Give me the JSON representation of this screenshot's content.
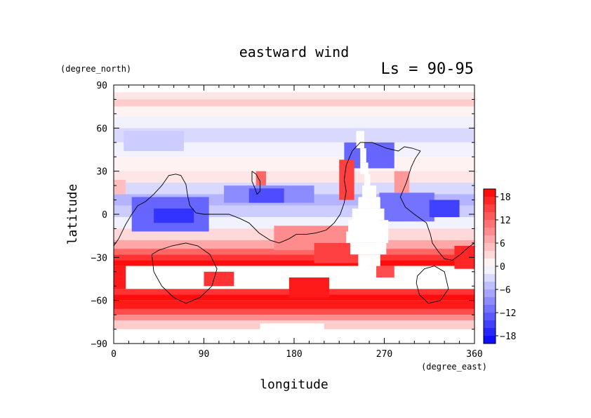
{
  "chart_data": {
    "type": "heatmap",
    "title": "eastward wind",
    "subtitle": "Ls = 90-95",
    "xlabel": "longitude",
    "ylabel": "latitude",
    "x_units": "(degree_east)",
    "y_units": "(degree_north)",
    "xlim": [
      0,
      360
    ],
    "ylim": [
      -90,
      90
    ],
    "x_ticks": [
      0,
      90,
      180,
      270,
      360
    ],
    "y_ticks": [
      90,
      60,
      30,
      0,
      -30,
      -60,
      -90
    ],
    "x_tick_labels": [
      "0",
      "90",
      "180",
      "270",
      "360"
    ],
    "y_tick_labels": [
      "90",
      "60",
      "30",
      "0",
      "−30",
      "−60",
      "−90"
    ],
    "colorbar": {
      "tick_values": [
        18,
        12,
        6,
        0,
        -6,
        -12,
        -18
      ],
      "tick_labels": [
        "18",
        "12",
        "6",
        "0",
        "−6",
        "−12",
        "−18"
      ],
      "range": [
        -20,
        20
      ],
      "negative_color": "#0000ff",
      "positive_color": "#ff0000",
      "zero_color": "#ffffff"
    },
    "coverage": {
      "lat_top": 85,
      "lat_bottom": -80
    },
    "zonal_bands": [
      {
        "lat_top": 85,
        "lat_bottom": 80,
        "value": 2
      },
      {
        "lat_top": 80,
        "lat_bottom": 75,
        "value": 4
      },
      {
        "lat_top": 75,
        "lat_bottom": 68,
        "value": 1
      },
      {
        "lat_top": 68,
        "lat_bottom": 60,
        "value": -1
      },
      {
        "lat_top": 60,
        "lat_bottom": 50,
        "value": -3
      },
      {
        "lat_top": 50,
        "lat_bottom": 40,
        "value": -1
      },
      {
        "lat_top": 40,
        "lat_bottom": 30,
        "value": 1
      },
      {
        "lat_top": 30,
        "lat_bottom": 22,
        "value": 2
      },
      {
        "lat_top": 22,
        "lat_bottom": 14,
        "value": -3
      },
      {
        "lat_top": 14,
        "lat_bottom": 6,
        "value": -6
      },
      {
        "lat_top": 6,
        "lat_bottom": -2,
        "value": -4
      },
      {
        "lat_top": -2,
        "lat_bottom": -10,
        "value": -1
      },
      {
        "lat_top": -10,
        "lat_bottom": -18,
        "value": 3
      },
      {
        "lat_top": -18,
        "lat_bottom": -24,
        "value": 7
      },
      {
        "lat_top": -24,
        "lat_bottom": -28,
        "value": 12
      },
      {
        "lat_top": -28,
        "lat_bottom": -32,
        "value": 16
      },
      {
        "lat_top": -32,
        "lat_bottom": -36,
        "value": 19
      },
      {
        "lat_top": -36,
        "lat_bottom": -52,
        "value": 0
      },
      {
        "lat_top": -52,
        "lat_bottom": -56,
        "value": 16
      },
      {
        "lat_top": -56,
        "lat_bottom": -60,
        "value": 19
      },
      {
        "lat_top": -60,
        "lat_bottom": -66,
        "value": 18
      },
      {
        "lat_top": -66,
        "lat_bottom": -70,
        "value": 14
      },
      {
        "lat_top": -70,
        "lat_bottom": -74,
        "value": 9
      },
      {
        "lat_top": -74,
        "lat_bottom": -80,
        "value": 4
      }
    ],
    "anomalies": [
      {
        "lon": [
          18,
          95
        ],
        "lat": [
          -12,
          12
        ],
        "value": -12
      },
      {
        "lon": [
          40,
          80
        ],
        "lat": [
          -6,
          4
        ],
        "value": -16
      },
      {
        "lon": [
          110,
          200
        ],
        "lat": [
          8,
          20
        ],
        "value": -9
      },
      {
        "lon": [
          135,
          170
        ],
        "lat": [
          8,
          18
        ],
        "value": -14
      },
      {
        "lon": [
          230,
          280
        ],
        "lat": [
          32,
          50
        ],
        "value": -12
      },
      {
        "lon": [
          265,
          320
        ],
        "lat": [
          -5,
          15
        ],
        "value": -11
      },
      {
        "lon": [
          315,
          345
        ],
        "lat": [
          -2,
          10
        ],
        "value": -15
      },
      {
        "lon": [
          225,
          240
        ],
        "lat": [
          10,
          38
        ],
        "value": 15
      },
      {
        "lon": [
          142,
          152
        ],
        "lat": [
          20,
          30
        ],
        "value": 12
      },
      {
        "lon": [
          280,
          295
        ],
        "lat": [
          15,
          30
        ],
        "value": 8
      },
      {
        "lon": [
          160,
          260
        ],
        "lat": [
          -25,
          -8
        ],
        "value": 9
      },
      {
        "lon": [
          200,
          260
        ],
        "lat": [
          -34,
          -20
        ],
        "value": 15
      },
      {
        "lon": [
          340,
          360
        ],
        "lat": [
          -38,
          -22
        ],
        "value": 17
      },
      {
        "lon": [
          0,
          12
        ],
        "lat": [
          14,
          24
        ],
        "value": 5
      },
      {
        "lon": [
          10,
          70
        ],
        "lat": [
          44,
          58
        ],
        "value": -4
      }
    ],
    "gap_fills": [
      {
        "lon": [
          0,
          12
        ],
        "lat": [
          -52,
          -36
        ],
        "value": 18
      },
      {
        "lon": [
          90,
          120
        ],
        "lat": [
          -50,
          -40
        ],
        "value": 16
      },
      {
        "lon": [
          175,
          215
        ],
        "lat": [
          -58,
          -44
        ],
        "value": 18
      },
      {
        "lon": [
          255,
          280
        ],
        "lat": [
          -44,
          -36
        ],
        "value": 14
      }
    ],
    "blank_regions": [
      {
        "lon": [
          242,
          250
        ],
        "lat": [
          58,
          46
        ]
      },
      {
        "lon": [
          246,
          252
        ],
        "lat": [
          46,
          36
        ]
      },
      {
        "lon": [
          246,
          254
        ],
        "lat": [
          36,
          28
        ]
      },
      {
        "lon": [
          250,
          256
        ],
        "lat": [
          28,
          20
        ]
      },
      {
        "lon": [
          248,
          262
        ],
        "lat": [
          20,
          12
        ]
      },
      {
        "lon": [
          244,
          266
        ],
        "lat": [
          12,
          4
        ]
      },
      {
        "lon": [
          238,
          270
        ],
        "lat": [
          4,
          -4
        ]
      },
      {
        "lon": [
          234,
          274
        ],
        "lat": [
          -4,
          -12
        ]
      },
      {
        "lon": [
          232,
          274
        ],
        "lat": [
          -12,
          -20
        ]
      },
      {
        "lon": [
          236,
          272
        ],
        "lat": [
          -20,
          -28
        ]
      },
      {
        "lon": [
          244,
          266
        ],
        "lat": [
          -28,
          -36
        ]
      },
      {
        "lon": [
          250,
          262
        ],
        "lat": [
          -36,
          -46
        ]
      },
      {
        "lon": [
          146,
          210
        ],
        "lat": [
          -76,
          -80
        ]
      }
    ],
    "contour_lines": [
      [
        [
          0,
          -22
        ],
        [
          5,
          -17
        ],
        [
          12,
          -7
        ],
        [
          18,
          0
        ],
        [
          24,
          6
        ],
        [
          32,
          9
        ],
        [
          40,
          14
        ],
        [
          48,
          20
        ],
        [
          55,
          27
        ],
        [
          62,
          28
        ],
        [
          67,
          27
        ],
        [
          72,
          21
        ],
        [
          74,
          12
        ],
        [
          76,
          6
        ],
        [
          82,
          1
        ],
        [
          90,
          0
        ],
        [
          102,
          0
        ],
        [
          115,
          0
        ],
        [
          126,
          -3
        ],
        [
          135,
          -6
        ],
        [
          145,
          -13
        ],
        [
          156,
          -18
        ],
        [
          165,
          -20
        ],
        [
          175,
          -17
        ],
        [
          182,
          -14
        ],
        [
          192,
          -14
        ],
        [
          202,
          -13
        ],
        [
          212,
          -11
        ],
        [
          220,
          -6
        ],
        [
          226,
          0
        ],
        [
          230,
          8
        ],
        [
          232,
          16
        ],
        [
          230,
          24
        ],
        [
          232,
          34
        ],
        [
          238,
          44
        ],
        [
          246,
          50
        ],
        [
          258,
          50
        ],
        [
          272,
          46
        ],
        [
          284,
          44
        ],
        [
          290,
          47
        ],
        [
          298,
          46
        ],
        [
          306,
          44
        ],
        [
          301,
          39
        ],
        [
          297,
          33
        ],
        [
          292,
          22
        ],
        [
          286,
          12
        ],
        [
          291,
          5
        ],
        [
          300,
          0
        ],
        [
          312,
          -6
        ],
        [
          316,
          -14
        ],
        [
          318,
          -20
        ],
        [
          324,
          -26
        ],
        [
          330,
          -31
        ],
        [
          338,
          -32
        ],
        [
          346,
          -28
        ],
        [
          354,
          -23
        ],
        [
          360,
          -20
        ]
      ],
      [
        [
          138,
          30
        ],
        [
          142,
          28
        ],
        [
          146,
          23
        ],
        [
          146,
          16
        ],
        [
          143,
          14
        ],
        [
          141,
          18
        ],
        [
          138,
          23
        ],
        [
          138,
          30
        ]
      ],
      [
        [
          38,
          -28
        ],
        [
          45,
          -25
        ],
        [
          58,
          -22
        ],
        [
          72,
          -20
        ],
        [
          84,
          -22
        ],
        [
          96,
          -28
        ],
        [
          103,
          -38
        ],
        [
          98,
          -50
        ],
        [
          86,
          -58
        ],
        [
          72,
          -62
        ],
        [
          60,
          -58
        ],
        [
          48,
          -50
        ],
        [
          40,
          -40
        ],
        [
          38,
          -28
        ]
      ],
      [
        [
          303,
          -43
        ],
        [
          310,
          -38
        ],
        [
          320,
          -36
        ],
        [
          330,
          -40
        ],
        [
          334,
          -52
        ],
        [
          326,
          -60
        ],
        [
          314,
          -62
        ],
        [
          305,
          -56
        ],
        [
          302,
          -48
        ],
        [
          303,
          -43
        ]
      ]
    ]
  }
}
